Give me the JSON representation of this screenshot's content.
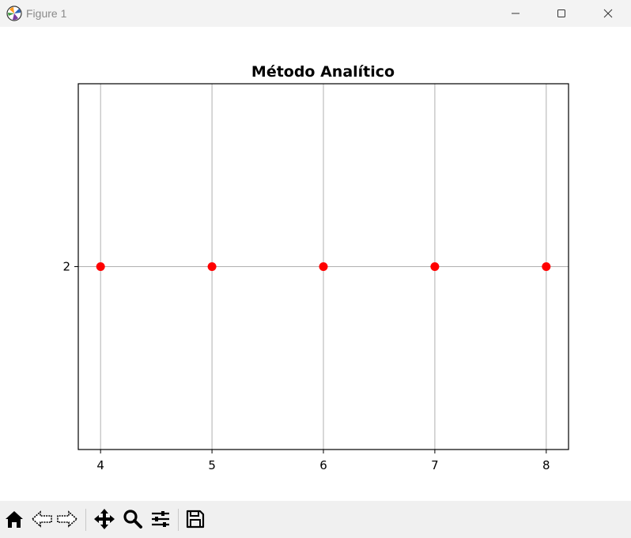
{
  "window": {
    "title": "Figure 1",
    "icons": {
      "app": "matplotlib-app-icon",
      "minimize": "minimize-icon",
      "maximize": "maximize-icon",
      "close": "close-icon"
    }
  },
  "toolbar": {
    "tools": [
      {
        "name": "home",
        "icon": "home-icon"
      },
      {
        "name": "back",
        "icon": "back-arrow-icon"
      },
      {
        "name": "forward",
        "icon": "forward-arrow-icon"
      },
      {
        "name": "pan",
        "icon": "move-icon"
      },
      {
        "name": "zoom",
        "icon": "zoom-icon"
      },
      {
        "name": "configure-subplots",
        "icon": "sliders-icon"
      },
      {
        "name": "save",
        "icon": "save-icon"
      }
    ]
  },
  "chart_data": {
    "type": "scatter",
    "title": "Método Analítico",
    "xlabel": "",
    "ylabel": "",
    "x": [
      4,
      5,
      6,
      7,
      8
    ],
    "y": [
      2,
      2,
      2,
      2,
      2
    ],
    "xlim": [
      3.8,
      8.2
    ],
    "ylim": [
      1.9,
      2.1
    ],
    "xticks": [
      "4",
      "5",
      "6",
      "7",
      "8"
    ],
    "xtick_values": [
      4,
      5,
      6,
      7,
      8
    ],
    "yticks": [
      "2"
    ],
    "ytick_values": [
      2
    ],
    "grid": true,
    "marker_color": "#ff0000",
    "grid_color": "#b0b0b0"
  }
}
